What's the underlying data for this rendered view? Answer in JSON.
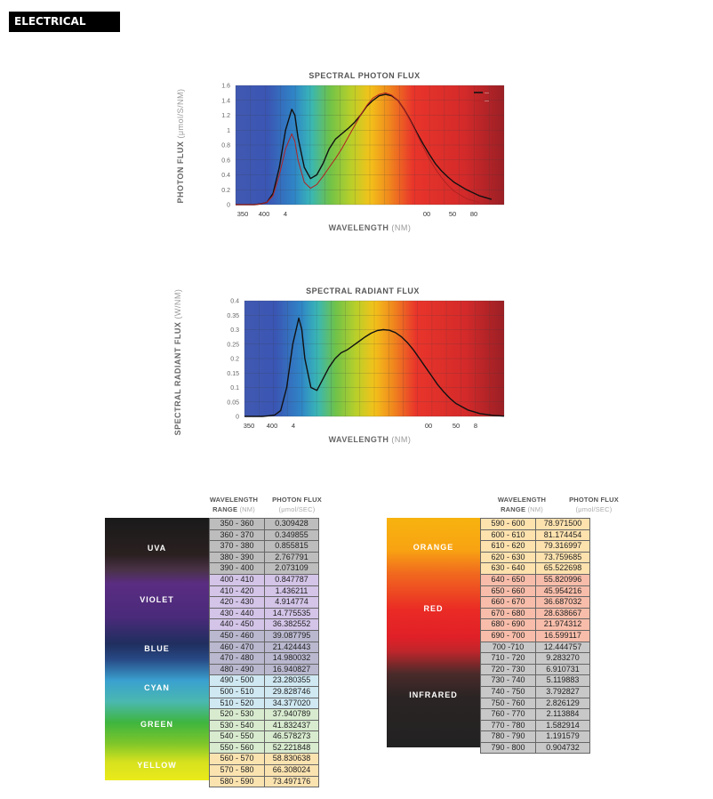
{
  "header": {
    "title": "ELECTRICAL DATA"
  },
  "chart_data": [
    {
      "type": "line",
      "title": "SPECTRAL PHOTON FLUX",
      "xlabel": "WAVELENGTH",
      "xlabel_unit": "(NM)",
      "ylabel": "PHOTON FLUX",
      "ylabel_unit": "(μmol/S/NM)",
      "xlim": [
        350,
        780
      ],
      "ylim": [
        0,
        1.6
      ],
      "yticks": [
        "0",
        "0.2",
        "0.4",
        "0.6",
        "0.8",
        "1",
        "1.2",
        "1.4",
        "1.6"
      ],
      "xtick_labels": [
        "350",
        "400",
        "4",
        "00",
        "50",
        "80"
      ],
      "legend": "top-right",
      "legend_labels": [
        "—",
        "—"
      ],
      "series": [
        {
          "x": [
            350,
            370,
            380,
            390,
            400,
            410,
            420,
            430,
            440,
            445,
            450,
            460,
            470,
            480,
            490,
            500,
            510,
            520,
            530,
            540,
            550,
            560,
            570,
            580,
            590,
            600,
            610,
            620,
            630,
            640,
            650,
            660,
            670,
            680,
            690,
            700,
            720,
            740,
            760
          ],
          "values": [
            0,
            0,
            0,
            0.01,
            0.03,
            0.15,
            0.5,
            1.0,
            1.28,
            1.2,
            0.9,
            0.5,
            0.35,
            0.4,
            0.55,
            0.75,
            0.88,
            0.95,
            1.02,
            1.1,
            1.2,
            1.32,
            1.4,
            1.46,
            1.48,
            1.46,
            1.4,
            1.28,
            1.13,
            0.97,
            0.82,
            0.68,
            0.55,
            0.45,
            0.37,
            0.3,
            0.2,
            0.12,
            0.07
          ]
        },
        {
          "x": [
            350,
            370,
            380,
            390,
            400,
            410,
            420,
            430,
            440,
            445,
            450,
            460,
            470,
            480,
            490,
            500,
            510,
            520,
            530,
            540,
            550,
            560,
            570,
            580,
            590,
            600,
            610,
            620,
            630,
            640,
            650,
            660,
            670,
            680,
            690,
            700,
            720,
            740
          ],
          "values": [
            0,
            0,
            0,
            0.01,
            0.03,
            0.12,
            0.4,
            0.75,
            0.95,
            0.85,
            0.6,
            0.3,
            0.22,
            0.27,
            0.38,
            0.5,
            0.62,
            0.75,
            0.9,
            1.05,
            1.2,
            1.33,
            1.43,
            1.48,
            1.5,
            1.47,
            1.4,
            1.28,
            1.12,
            0.95,
            0.78,
            0.62,
            0.48,
            0.36,
            0.26,
            0.18,
            0.08,
            0.03
          ]
        }
      ]
    },
    {
      "type": "line",
      "title": "SPECTRAL RADIANT FLUX",
      "xlabel": "WAVELENGTH",
      "xlabel_unit": "(NM)",
      "ylabel": "SPECTRAL RADIANT FLUX",
      "ylabel_unit": "(W/NM)",
      "xlim": [
        350,
        780
      ],
      "ylim": [
        0,
        0.4
      ],
      "yticks": [
        "0",
        "0.05",
        "0.1",
        "0.15",
        "0.2",
        "0.25",
        "0.3",
        "0.35",
        "0.4"
      ],
      "xtick_labels": [
        "350",
        "400",
        "4",
        "00",
        "50",
        "8"
      ],
      "series": [
        {
          "x": [
            350,
            370,
            380,
            390,
            400,
            410,
            420,
            430,
            440,
            445,
            450,
            460,
            470,
            480,
            490,
            500,
            510,
            520,
            530,
            540,
            550,
            560,
            570,
            580,
            590,
            600,
            610,
            620,
            630,
            640,
            650,
            660,
            670,
            680,
            690,
            700,
            720,
            740,
            760,
            780
          ],
          "values": [
            0,
            0,
            0,
            0.002,
            0.005,
            0.02,
            0.1,
            0.25,
            0.34,
            0.3,
            0.2,
            0.1,
            0.09,
            0.13,
            0.17,
            0.2,
            0.22,
            0.23,
            0.245,
            0.26,
            0.275,
            0.288,
            0.297,
            0.3,
            0.298,
            0.29,
            0.275,
            0.255,
            0.23,
            0.2,
            0.17,
            0.14,
            0.11,
            0.085,
            0.063,
            0.045,
            0.022,
            0.01,
            0.004,
            0.001
          ]
        }
      ]
    }
  ],
  "table_left": {
    "col_range": "WAVELENGTH",
    "col_range_sub": "RANGE",
    "col_range_unit": "(NM)",
    "col_flux": "PHOTON FLUX",
    "col_flux_unit": "(μmol/SEC)",
    "bands": [
      "UVA",
      "VIOLET",
      "BLUE",
      "CYAN",
      "GREEN",
      "YELLOW"
    ],
    "rows": [
      [
        "350 - 360",
        "0.309428"
      ],
      [
        "360 - 370",
        "0.349855"
      ],
      [
        "370 - 380",
        "0.855815"
      ],
      [
        "380 - 390",
        "2.767791"
      ],
      [
        "390 - 400",
        "2.073109"
      ],
      [
        "400 - 410",
        "0.847787"
      ],
      [
        "410 - 420",
        "1.436211"
      ],
      [
        "420 - 430",
        "4.914774"
      ],
      [
        "430 - 440",
        "14.775535"
      ],
      [
        "440 - 450",
        "36.382552"
      ],
      [
        "450 - 460",
        "39.087795"
      ],
      [
        "460 - 470",
        "21.424443"
      ],
      [
        "470 - 480",
        "14.980032"
      ],
      [
        "480 - 490",
        "16.940827"
      ],
      [
        "490 - 500",
        "23.280355"
      ],
      [
        "500 - 510",
        "29.828746"
      ],
      [
        "510 - 520",
        "34.377020"
      ],
      [
        "520 - 530",
        "37.940789"
      ],
      [
        "530 - 540",
        "41.832437"
      ],
      [
        "540 - 550",
        "46.578273"
      ],
      [
        "550 - 560",
        "52.221848"
      ],
      [
        "560 - 570",
        "58.830638"
      ],
      [
        "570 - 580",
        "66.308024"
      ],
      [
        "580 - 590",
        "73.497176"
      ]
    ]
  },
  "table_right": {
    "col_range": "WAVELENGTH",
    "col_range_sub": "RANGE",
    "col_range_unit": "(NM)",
    "col_flux": "PHOTON FLUX",
    "col_flux_unit": "(μmol/SEC)",
    "bands": [
      "ORANGE",
      "RED",
      "INFRARED"
    ],
    "rows": [
      [
        "590 - 600",
        "78.971500"
      ],
      [
        "600 - 610",
        "81.174454"
      ],
      [
        "610 - 620",
        "79.316997"
      ],
      [
        "620 - 630",
        "73.759685"
      ],
      [
        "630 - 640",
        "65.522698"
      ],
      [
        "640 - 650",
        "55.820996"
      ],
      [
        "650 - 660",
        "45.954216"
      ],
      [
        "660 - 670",
        "36.687032"
      ],
      [
        "670 - 680",
        "28.638667"
      ],
      [
        "680 - 690",
        "21.974312"
      ],
      [
        "690 - 700",
        "16.599117"
      ],
      [
        "700 -710",
        "12.444757"
      ],
      [
        "710 - 720",
        "9.283270"
      ],
      [
        "720 - 730",
        "6.910731"
      ],
      [
        "730 - 740",
        "5.119883"
      ],
      [
        "740 - 750",
        "3.792827"
      ],
      [
        "750 - 760",
        "2.826129"
      ],
      [
        "760 - 770",
        "2.113884"
      ],
      [
        "770 - 780",
        "1.582914"
      ],
      [
        "780 - 790",
        "1.191579"
      ],
      [
        "790 - 800",
        "0.904732"
      ]
    ]
  },
  "colors": {
    "line1": "#111111",
    "line2": "#b22222",
    "uva_row": "#bdbdbd",
    "violet_row": "#d3c4e8",
    "blue_row": "#b9b8cf",
    "cyan_row": "#cfe8f2",
    "green_row": "#d8ebcf",
    "yellow_row": "#fbe3b0",
    "orange_row": "#fde2ae",
    "red_row": "#f8bdaa",
    "ir_row": "#c8c8c8"
  }
}
